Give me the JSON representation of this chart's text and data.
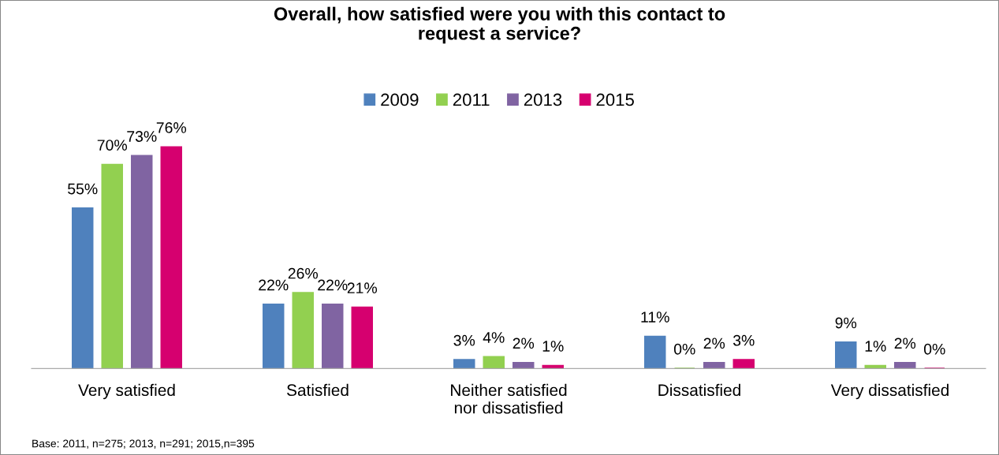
{
  "chart_data": {
    "type": "bar",
    "title": "Overall, how satisfied were you with this contact to\nrequest a service?",
    "categories": [
      "Very satisfied",
      "Satisfied",
      "Neither satisfied\nnor dissatisfied",
      "Dissatisfied",
      "Very dissatisfied"
    ],
    "series": [
      {
        "name": "2009",
        "color": "#4f81bd",
        "values": [
          55,
          22,
          3,
          11,
          9
        ],
        "value_labels": [
          "55%",
          "22%",
          "3%",
          "11%",
          "9%"
        ]
      },
      {
        "name": "2011",
        "color": "#92d050",
        "values": [
          70,
          26,
          4,
          0,
          1
        ],
        "value_labels": [
          "70%",
          "26%",
          "4%",
          "0%",
          "1%"
        ]
      },
      {
        "name": "2013",
        "color": "#8064a2",
        "values": [
          73,
          22,
          2,
          2,
          2
        ],
        "value_labels": [
          "73%",
          "22%",
          "2%",
          "2%",
          "2%"
        ]
      },
      {
        "name": "2015",
        "color": "#d6006f",
        "values": [
          76,
          21,
          1,
          3,
          0
        ],
        "value_labels": [
          "76%",
          "21%",
          "1%",
          "3%",
          "0%"
        ]
      }
    ],
    "legend": "top",
    "grid": false,
    "tick_labels": "x",
    "annotations": [
      "Base: 2011, n=275; 2013, n=291; 2015,n=395"
    ]
  }
}
